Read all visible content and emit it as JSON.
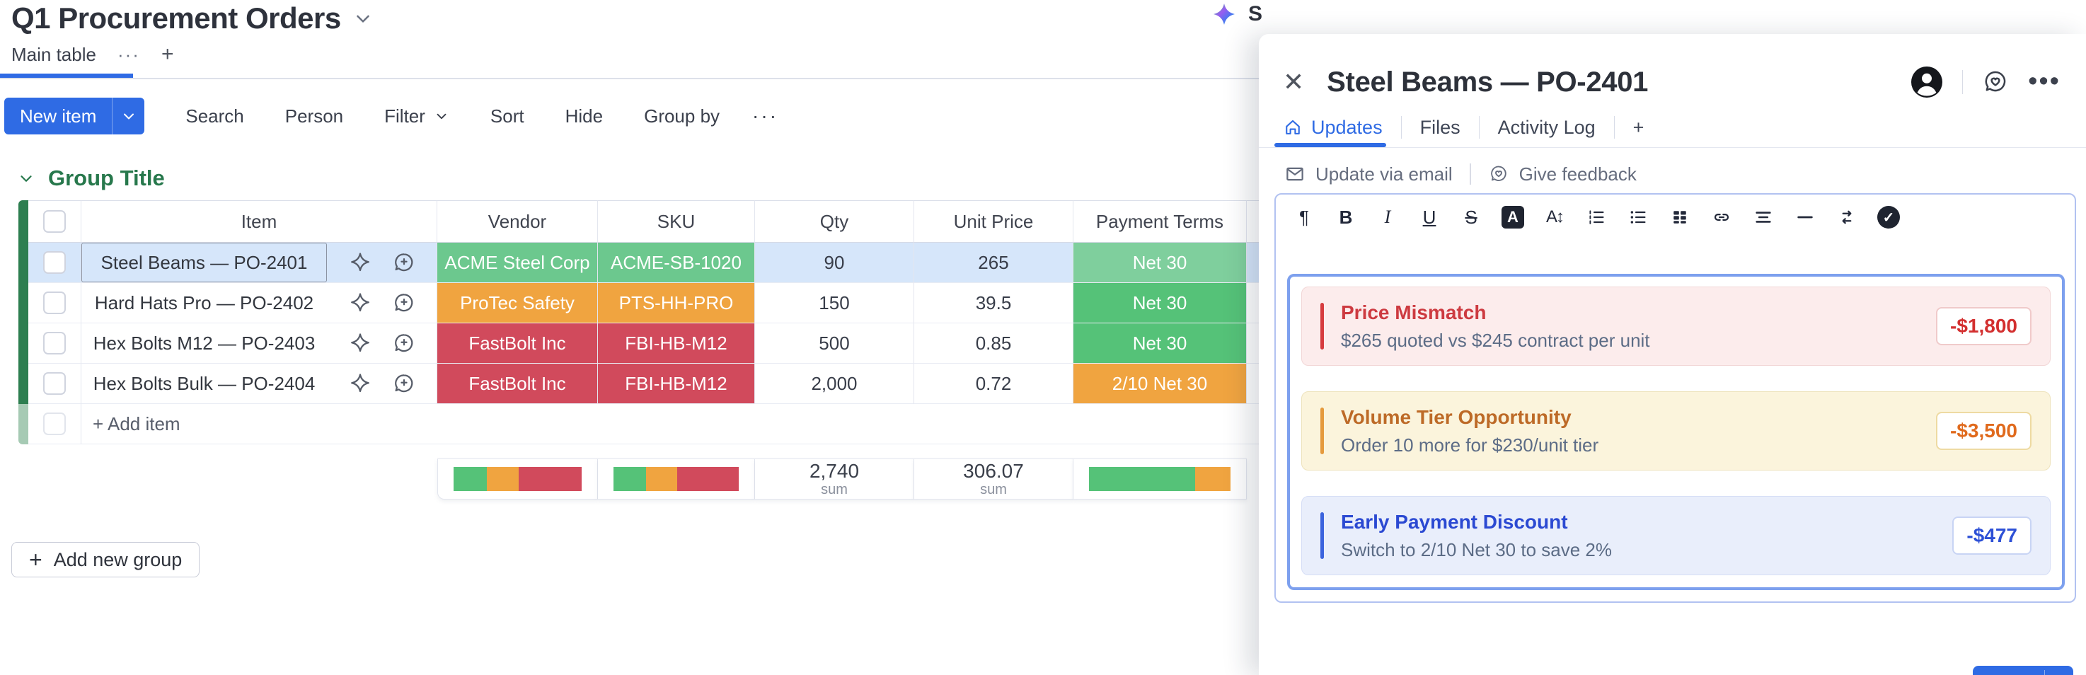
{
  "colors": {
    "accent_blue": "#2f6be4",
    "group_green": "#27784c",
    "green": "#55c278",
    "orange": "#f0a440",
    "red": "#d14a5c",
    "selected_row": "#d6e6fa"
  },
  "board": {
    "title": "Q1 Procurement Orders",
    "ai_fragment": "S",
    "view_tabs": {
      "active": "Main table",
      "menu": "···",
      "add": "+"
    },
    "toolbar": {
      "new_item": "New item",
      "items": [
        {
          "name": "search",
          "label": "Search"
        },
        {
          "name": "person",
          "label": "Person"
        },
        {
          "name": "filter",
          "label": "Filter",
          "caret": true
        },
        {
          "name": "sort",
          "label": "Sort"
        },
        {
          "name": "hide",
          "label": "Hide"
        },
        {
          "name": "group-by",
          "label": "Group by"
        }
      ],
      "more": "···"
    },
    "group": {
      "title": "Group Title"
    },
    "table": {
      "columns": [
        "Item",
        "Vendor",
        "SKU",
        "Qty",
        "Unit Price",
        "Payment Terms"
      ],
      "rows": [
        {
          "selected": true,
          "item": "Steel Beams — PO-2401",
          "vendor": "ACME Steel Corp",
          "vendor_color": "#6cc88e",
          "sku": "ACME-SB-1020",
          "sku_color": "#6cc88e",
          "qty": "90",
          "unit_price": "265",
          "terms": "Net 30",
          "terms_color": "#7fcf9d"
        },
        {
          "selected": false,
          "item": "Hard Hats Pro — PO-2402",
          "vendor": "ProTec Safety",
          "vendor_color": "#f0a440",
          "sku": "PTS-HH-PRO",
          "sku_color": "#f0a440",
          "qty": "150",
          "unit_price": "39.5",
          "terms": "Net 30",
          "terms_color": "#55c278"
        },
        {
          "selected": false,
          "item": "Hex Bolts M12 — PO-2403",
          "vendor": "FastBolt Inc",
          "vendor_color": "#d14a5c",
          "sku": "FBI-HB-M12",
          "sku_color": "#d14a5c",
          "qty": "500",
          "unit_price": "0.85",
          "terms": "Net 30",
          "terms_color": "#55c278"
        },
        {
          "selected": false,
          "item": "Hex Bolts Bulk — PO-2404",
          "vendor": "FastBolt Inc",
          "vendor_color": "#d14a5c",
          "sku": "FBI-HB-M12",
          "sku_color": "#d14a5c",
          "qty": "2,000",
          "unit_price": "0.72",
          "terms": "2/10 Net 30",
          "terms_color": "#f0a440"
        }
      ],
      "add_item": "+ Add item",
      "summary": {
        "vendor_bar": [
          {
            "color": "#55c278",
            "pct": 26
          },
          {
            "color": "#f0a440",
            "pct": 25
          },
          {
            "color": "#d14a5c",
            "pct": 49
          }
        ],
        "sku_bar": [
          {
            "color": "#55c278",
            "pct": 26
          },
          {
            "color": "#f0a440",
            "pct": 25
          },
          {
            "color": "#d14a5c",
            "pct": 49
          }
        ],
        "qty_sum": {
          "value": "2,740",
          "label": "sum"
        },
        "unit_price_sum": {
          "value": "306.07",
          "label": "sum"
        },
        "terms_bar": [
          {
            "color": "#55c278",
            "pct": 75
          },
          {
            "color": "#f0a440",
            "pct": 25
          }
        ]
      }
    },
    "add_group": "Add new group"
  },
  "panel": {
    "close": "✕",
    "title": "Steel Beams — PO-2401",
    "more": "•••",
    "tabs": [
      {
        "name": "updates",
        "label": "Updates",
        "icon": "home",
        "active": true
      },
      {
        "name": "files",
        "label": "Files"
      },
      {
        "name": "activity-log",
        "label": "Activity Log"
      },
      {
        "name": "add-tab",
        "label": "+"
      }
    ],
    "quick_actions": [
      {
        "name": "update-via-email",
        "label": "Update via email",
        "icon": "mail"
      },
      {
        "name": "give-feedback",
        "label": "Give feedback",
        "icon": "feedback"
      }
    ],
    "editor_tools": [
      "paragraph",
      "bold",
      "italic",
      "underline",
      "strikethrough",
      "text-color",
      "text-size",
      "numbered-list",
      "bullet-list",
      "layout",
      "link",
      "align",
      "divider",
      "direction",
      "checkmark"
    ],
    "cards": [
      {
        "name": "price-mismatch",
        "title": "Price Mismatch",
        "body": "$265 quoted vs $245 contract per unit",
        "badge": "-$1,800",
        "accent": "#d63b3e",
        "title_color": "#cd3a40",
        "bg": "#fcecec",
        "border": "#f2d7d7",
        "badge_color": "#d32f2f",
        "badge_border": "#f0caca"
      },
      {
        "name": "volume-tier-opportunity",
        "title": "Volume Tier Opportunity",
        "body": "Order 10 more for $230/unit tier",
        "badge": "-$3,500",
        "accent": "#e59a3d",
        "title_color": "#bd6a27",
        "bg": "#fbf4dc",
        "border": "#eee3bd",
        "badge_color": "#e06a1d",
        "badge_border": "#eedaa2"
      },
      {
        "name": "early-payment-discount",
        "title": "Early Payment Discount",
        "body": "Switch to 2/10 Net 30 to save 2%",
        "badge": "-$477",
        "accent": "#3b63dd",
        "title_color": "#2b49d2",
        "bg": "#e9eefb",
        "border": "#d6def6",
        "badge_color": "#2d50d6",
        "badge_border": "#c8d4f4"
      }
    ]
  }
}
